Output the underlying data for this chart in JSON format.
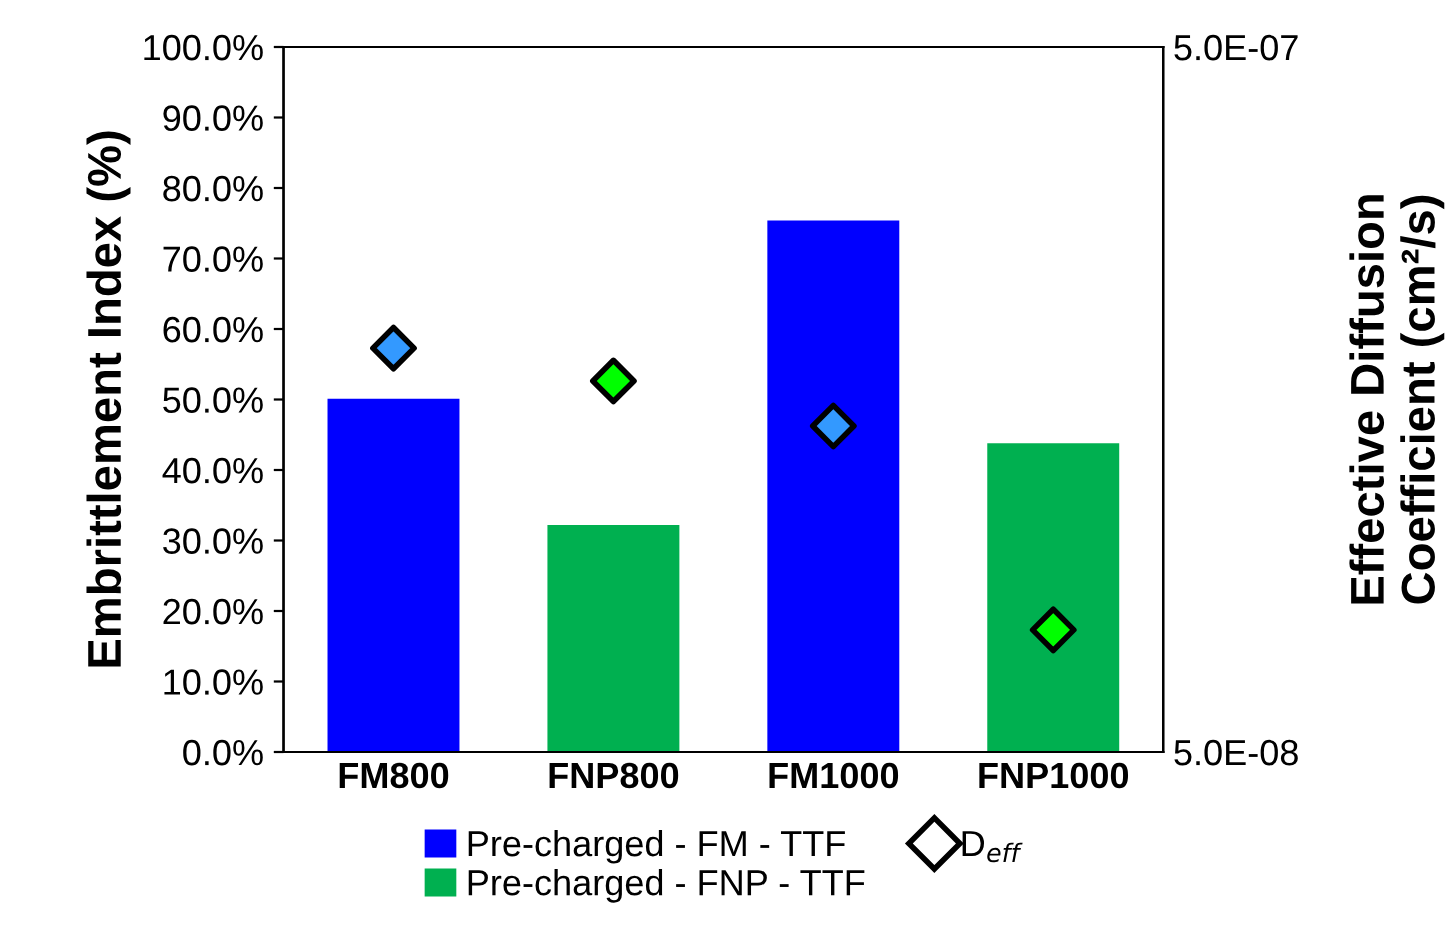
{
  "chart_data": {
    "type": "bar",
    "ylabel": "Embrittlement Index (%)",
    "y2label": "Effective Diffusion\nCoefficient (cm²/s)",
    "categories": [
      "FM800",
      "FNP800",
      "FM1000",
      "FNP1000"
    ],
    "series": [
      {
        "name": "Pre-charged - FM - TTF",
        "color": "#0000ff",
        "values": [
          50.1,
          null,
          75.4,
          null
        ]
      },
      {
        "name": "Pre-charged - FNP - TTF",
        "color": "#00b050",
        "values": [
          null,
          32.2,
          null,
          43.8
        ]
      },
      {
        "name": "D$_{eff}$",
        "type": "scatter",
        "axis": "y2",
        "marker": "diamond",
        "colors": [
          "#3399ff",
          "#00ff00",
          "#3399ff",
          "#00ff00"
        ],
        "values": [
          1.87e-07,
          1.68e-07,
          1.45e-07,
          7.45e-08
        ]
      }
    ],
    "ylim": [
      0,
      100
    ],
    "yticks": [
      {
        "value": 0,
        "label": "0.0%"
      },
      {
        "value": 10,
        "label": "10.0%"
      },
      {
        "value": 20,
        "label": "20.0%"
      },
      {
        "value": 30,
        "label": "30.0%"
      },
      {
        "value": 40,
        "label": "40.0%"
      },
      {
        "value": 50,
        "label": "50.0%"
      },
      {
        "value": 60,
        "label": "60.0%"
      },
      {
        "value": 70,
        "label": "70.0%"
      },
      {
        "value": 80,
        "label": "80.0%"
      },
      {
        "value": 90,
        "label": "90.0%"
      },
      {
        "value": 100,
        "label": "100.0%"
      }
    ],
    "log": "y2",
    "y2lim": [
      5e-08,
      5e-07
    ],
    "y2ticks": [
      {
        "value": 5e-08,
        "label": "5.0E-08"
      },
      {
        "value": 5e-07,
        "label": "5.0E-07"
      }
    ],
    "grid": false,
    "legend": "bottom"
  }
}
